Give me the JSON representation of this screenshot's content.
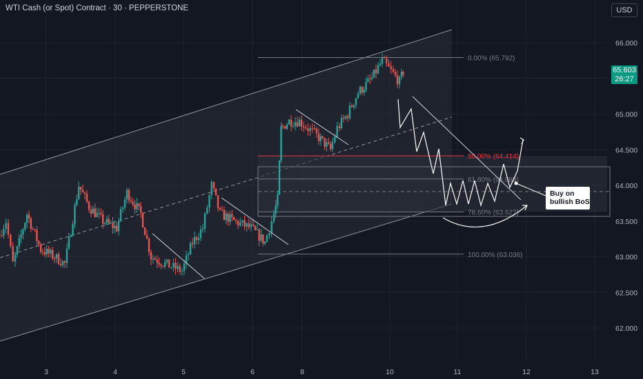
{
  "header": {
    "title": "WTI Cash (or Spot) Contract · 30 · PEPPERSTONE"
  },
  "currency_button": "USD",
  "last_price": {
    "price": "65.603",
    "countdown": "26:27",
    "color": "#089981"
  },
  "callout": {
    "line1": "Buy on",
    "line2": "bullish BoS"
  },
  "colors": {
    "background": "#131722",
    "up_candle": "#26a69a",
    "down_candle": "#ef5350",
    "fib_50": "#f23645",
    "fib_level": "#787b86",
    "channel_fill": "#2a2e39",
    "projection": "#ffffff"
  },
  "chart_data": {
    "type": "candlestick",
    "ylim": [
      61.9,
      66.3
    ],
    "y_ticks": [
      "66.000",
      "65.500",
      "65.000",
      "64.500",
      "64.000",
      "63.500",
      "63.000",
      "62.500",
      "62.000"
    ],
    "x_ticks": [
      "3",
      "4",
      "5",
      "6",
      "8",
      "10",
      "11",
      "12",
      "13"
    ],
    "fib_levels": [
      {
        "label": "0.00% (65.792)",
        "value": 65.792
      },
      {
        "label": "50.00% (64.414)",
        "value": 64.414
      },
      {
        "label": "61.80% (64.089)",
        "value": 64.089
      },
      {
        "label": "78.60% (63.627)",
        "value": 63.627
      },
      {
        "label": "100.00% (63.036)",
        "value": 63.036
      }
    ],
    "price_path": [
      {
        "x": 0,
        "y": 63.3
      },
      {
        "x": 10,
        "y": 63.5
      },
      {
        "x": 20,
        "y": 62.9
      },
      {
        "x": 40,
        "y": 63.6
      },
      {
        "x": 60,
        "y": 63.1
      },
      {
        "x": 80,
        "y": 63.0
      },
      {
        "x": 95,
        "y": 62.9
      },
      {
        "x": 115,
        "y": 64.0
      },
      {
        "x": 130,
        "y": 63.7
      },
      {
        "x": 150,
        "y": 63.5
      },
      {
        "x": 170,
        "y": 63.4
      },
      {
        "x": 185,
        "y": 63.9
      },
      {
        "x": 205,
        "y": 63.6
      },
      {
        "x": 220,
        "y": 63.0
      },
      {
        "x": 240,
        "y": 62.9
      },
      {
        "x": 265,
        "y": 62.8
      },
      {
        "x": 280,
        "y": 63.2
      },
      {
        "x": 295,
        "y": 63.4
      },
      {
        "x": 308,
        "y": 64.0
      },
      {
        "x": 320,
        "y": 63.6
      },
      {
        "x": 340,
        "y": 63.5
      },
      {
        "x": 365,
        "y": 63.4
      },
      {
        "x": 385,
        "y": 63.2
      },
      {
        "x": 395,
        "y": 63.5
      },
      {
        "x": 403,
        "y": 63.8
      },
      {
        "x": 408,
        "y": 64.8
      },
      {
        "x": 420,
        "y": 64.9
      },
      {
        "x": 435,
        "y": 64.9
      },
      {
        "x": 460,
        "y": 64.7
      },
      {
        "x": 480,
        "y": 64.5
      },
      {
        "x": 490,
        "y": 64.8
      },
      {
        "x": 505,
        "y": 65.0
      },
      {
        "x": 520,
        "y": 65.3
      },
      {
        "x": 540,
        "y": 65.5
      },
      {
        "x": 555,
        "y": 65.75
      },
      {
        "x": 568,
        "y": 65.6
      },
      {
        "x": 580,
        "y": 65.45
      },
      {
        "x": 585,
        "y": 65.6
      }
    ]
  }
}
